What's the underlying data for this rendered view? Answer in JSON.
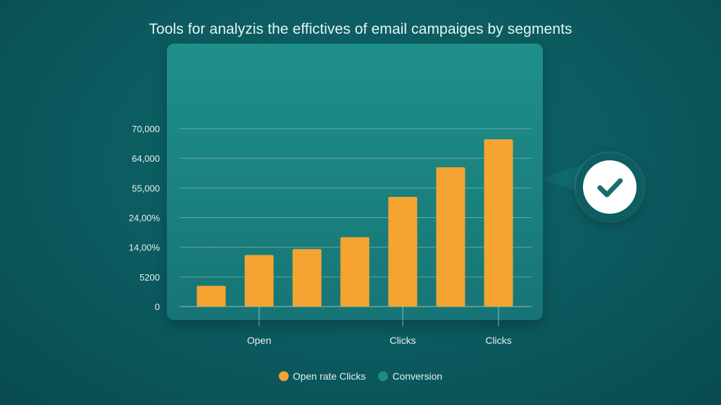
{
  "chart_data": {
    "type": "bar",
    "title": "Tools for analyzis the effictives of email campaiges by segments",
    "y_tick_labels": [
      "0",
      "5200",
      "14,00%",
      "24,00%",
      "55,000",
      "64,000",
      "70,000"
    ],
    "values": [
      3.5,
      8.7,
      9.7,
      11.7,
      18.5,
      23.5,
      28.2
    ],
    "ylim": [
      0,
      30
    ],
    "x_tick_labels": [
      {
        "label": "Open",
        "category_index": 1
      },
      {
        "label": "Clicks",
        "category_index": 4
      },
      {
        "label": "Clicks",
        "category_index": 6
      }
    ],
    "legend": [
      {
        "name": "Open rate Clicks",
        "color": "#f5a431"
      },
      {
        "name": "Conversion",
        "color": "#1f8a85"
      }
    ],
    "grid": true,
    "legend_position": "bottom-center"
  },
  "colors": {
    "bar": "#f5a431",
    "check": "#1a6d70"
  },
  "icons": {
    "badge": "check-circle-icon"
  }
}
